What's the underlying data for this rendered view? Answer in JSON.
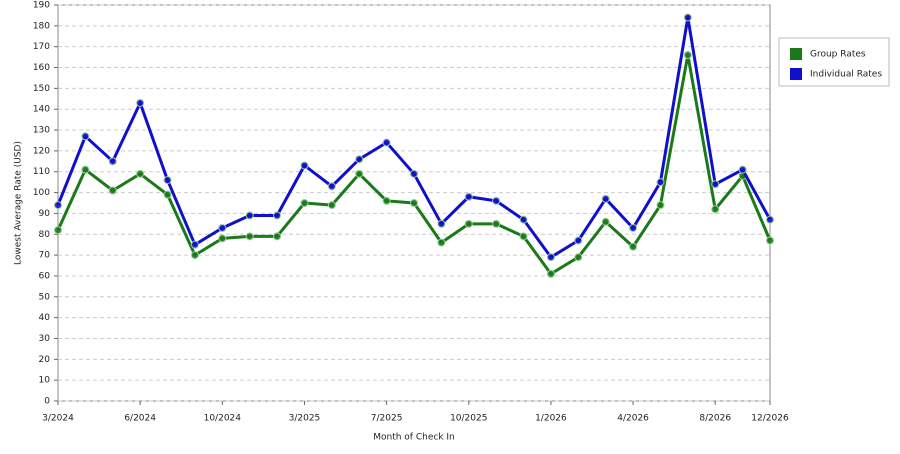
{
  "chart_data": {
    "type": "line",
    "x_label": "Month of Check In",
    "y_label": "Lowest Average Rate (USD)",
    "categories": [
      "3/2024",
      null,
      null,
      "6/2024",
      null,
      null,
      "10/2024",
      null,
      null,
      "3/2025",
      null,
      null,
      "7/2025",
      null,
      null,
      "10/2025",
      null,
      null,
      "1/2026",
      null,
      null,
      "4/2026",
      null,
      null,
      "8/2026",
      null,
      "12/2026"
    ],
    "series": [
      {
        "name": "Group Rates",
        "color": "#1a7a1a",
        "values": [
          82,
          111,
          101,
          109,
          99,
          70,
          78,
          79,
          79,
          95,
          94,
          109,
          96,
          95,
          76,
          85,
          85,
          79,
          61,
          69,
          86,
          74,
          94,
          166,
          92,
          108,
          77
        ]
      },
      {
        "name": "Individual Rates",
        "color": "#1010cc",
        "values": [
          94,
          127,
          115,
          143,
          106,
          75,
          83,
          89,
          89,
          113,
          103,
          116,
          124,
          109,
          85,
          98,
          96,
          87,
          69,
          77,
          97,
          83,
          105,
          184,
          104,
          111,
          87
        ]
      }
    ],
    "ylim": [
      0,
      190
    ],
    "yticks": [
      0,
      10,
      20,
      30,
      40,
      50,
      60,
      70,
      80,
      90,
      100,
      110,
      120,
      130,
      140,
      150,
      160,
      170,
      180,
      190
    ],
    "grid": true,
    "legend": "right"
  }
}
